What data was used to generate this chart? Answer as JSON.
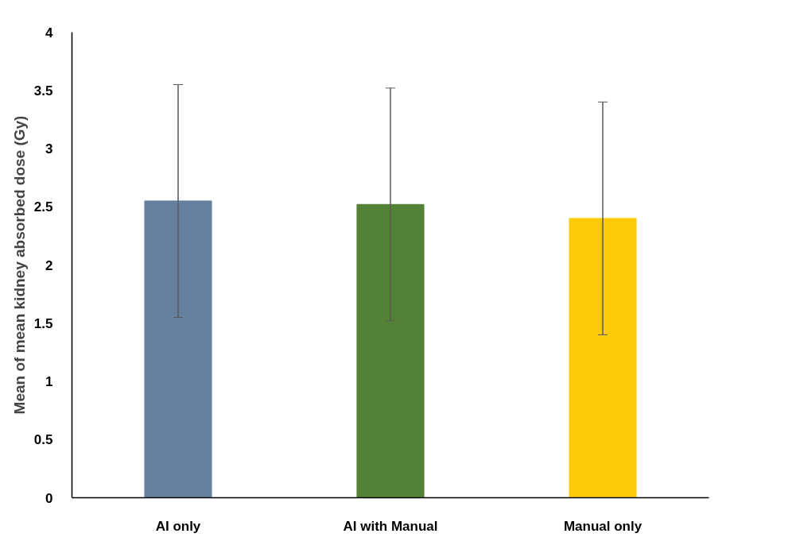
{
  "chart_data": {
    "type": "bar",
    "ylabel": "Mean of mean kidney absorbed dose (Gy)",
    "categories": [
      "AI only",
      "AI with Manual",
      "Manual only"
    ],
    "values": [
      2.55,
      2.52,
      2.4
    ],
    "colors": [
      "#657f9e",
      "#538135",
      "#fccb0a"
    ],
    "errors": [
      1.0,
      1.0,
      1.0
    ],
    "ylim": [
      0,
      4
    ],
    "yticks": [
      0,
      0.5,
      1,
      1.5,
      2,
      2.5,
      3,
      3.5,
      4
    ],
    "grid": false
  }
}
